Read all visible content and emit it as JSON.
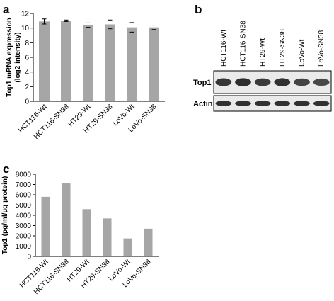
{
  "panels": {
    "a": "a",
    "b": "b",
    "c": "c"
  },
  "chart_data": [
    {
      "panel": "a",
      "type": "bar",
      "categories": [
        "HCT116-Wt",
        "HCT116-SN38",
        "HT29-Wt",
        "HT29-SN38",
        "LoVo-Wt",
        "LoVo-SN38"
      ],
      "values": [
        10.9,
        11.0,
        10.4,
        10.5,
        10.1,
        10.1
      ],
      "errors": [
        0.35,
        0.1,
        0.3,
        0.6,
        0.65,
        0.3
      ],
      "ylabel": "Top1 mRNA expression (log2 intensity)",
      "ylabel_lines": [
        "Top1 mRNA expression",
        "(log2 intensity)"
      ],
      "ylim": [
        0,
        12
      ],
      "yticks": [
        0,
        2,
        4,
        6,
        8,
        10,
        12
      ],
      "grid": false,
      "bar_color": "#a6a6a6"
    },
    {
      "panel": "c",
      "type": "bar",
      "categories": [
        "HCT116-Wt",
        "HCT116-SN38",
        "HT29-Wt",
        "HT29-SN38",
        "LoVo-Wt",
        "LoVo-SN38"
      ],
      "values": [
        5800,
        7100,
        4600,
        3700,
        1750,
        2700
      ],
      "ylabel": "Top1 (pg/ml/µg protein)",
      "ylim": [
        0,
        8000
      ],
      "yticks": [
        0,
        1000,
        2000,
        3000,
        4000,
        5000,
        6000,
        7000,
        8000
      ],
      "grid": false,
      "bar_color": "#a6a6a6"
    }
  ],
  "blot": {
    "lanes": [
      "HCT116-Wt",
      "HCT116-SN38",
      "HT29-Wt",
      "HT29-SN38",
      "LoVo-Wt",
      "LoVo-SN38"
    ],
    "rows": [
      {
        "label": "Top1",
        "intensity": [
          0.85,
          0.95,
          0.8,
          0.9,
          0.7,
          0.65
        ]
      },
      {
        "label": "Actin",
        "intensity": [
          0.9,
          0.9,
          0.9,
          0.9,
          0.9,
          0.9
        ]
      }
    ]
  }
}
